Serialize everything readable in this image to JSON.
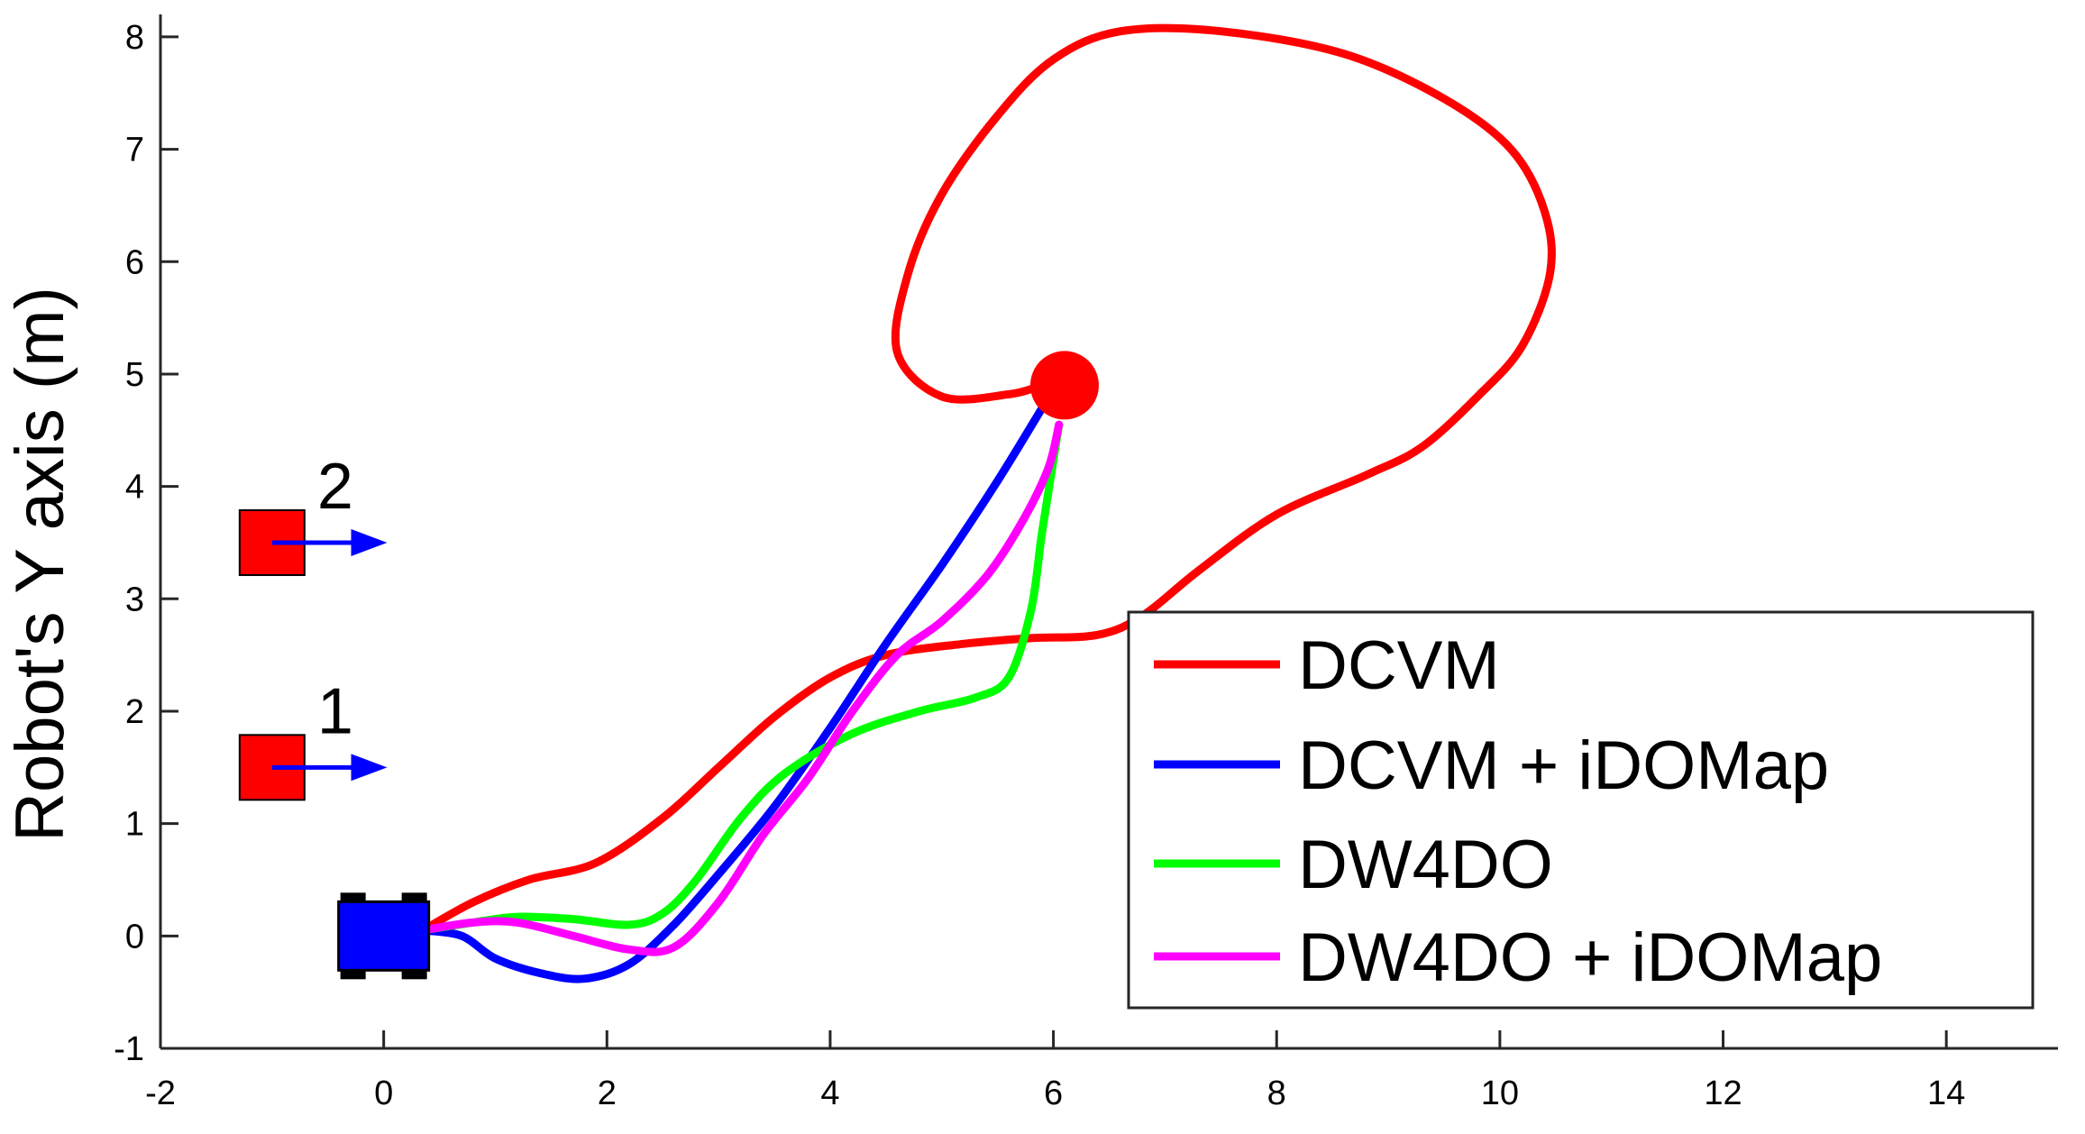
{
  "chart_data": {
    "type": "line",
    "title": "",
    "xlabel": "",
    "ylabel": "Robot's Y axis (m)",
    "xlim": [
      -2,
      15
    ],
    "ylim": [
      -1,
      8.2
    ],
    "xticks": [
      -2,
      0,
      2,
      4,
      6,
      8,
      10,
      12,
      14
    ],
    "yticks": [
      -1,
      0,
      1,
      2,
      3,
      4,
      5,
      6,
      7,
      8
    ],
    "xtick_labels": [
      "-2",
      "0",
      "2",
      "4",
      "6",
      "8",
      "10",
      "12",
      "14"
    ],
    "ytick_labels": [
      "-1",
      "0",
      "1",
      "2",
      "3",
      "4",
      "5",
      "6",
      "7",
      "8"
    ],
    "grid": false,
    "legend_position": "bottom-right",
    "series": [
      {
        "name": "DCVM",
        "color": "#ff0000",
        "points": [
          [
            0.35,
            0.05
          ],
          [
            0.8,
            0.3
          ],
          [
            1.3,
            0.5
          ],
          [
            1.9,
            0.65
          ],
          [
            2.5,
            1.05
          ],
          [
            3.0,
            1.5
          ],
          [
            3.5,
            1.95
          ],
          [
            4.0,
            2.3
          ],
          [
            4.5,
            2.5
          ],
          [
            5.2,
            2.6
          ],
          [
            5.8,
            2.65
          ],
          [
            6.4,
            2.68
          ],
          [
            6.8,
            2.85
          ],
          [
            7.3,
            3.25
          ],
          [
            8.0,
            3.75
          ],
          [
            8.8,
            4.1
          ],
          [
            9.3,
            4.35
          ],
          [
            9.8,
            4.8
          ],
          [
            10.2,
            5.25
          ],
          [
            10.45,
            5.9
          ],
          [
            10.4,
            6.45
          ],
          [
            10.1,
            7.0
          ],
          [
            9.5,
            7.45
          ],
          [
            8.6,
            7.85
          ],
          [
            7.5,
            8.05
          ],
          [
            6.6,
            8.05
          ],
          [
            6.0,
            7.8
          ],
          [
            5.5,
            7.3
          ],
          [
            5.0,
            6.6
          ],
          [
            4.7,
            5.9
          ],
          [
            4.6,
            5.2
          ],
          [
            5.0,
            4.8
          ],
          [
            5.6,
            4.82
          ],
          [
            5.9,
            4.9
          ]
        ]
      },
      {
        "name": "DCVM + iDOMap",
        "color": "#0000ff",
        "points": [
          [
            0.35,
            0.05
          ],
          [
            0.7,
            0.0
          ],
          [
            1.0,
            -0.2
          ],
          [
            1.4,
            -0.33
          ],
          [
            1.8,
            -0.38
          ],
          [
            2.2,
            -0.25
          ],
          [
            2.6,
            0.1
          ],
          [
            3.0,
            0.55
          ],
          [
            3.5,
            1.15
          ],
          [
            4.0,
            1.85
          ],
          [
            4.5,
            2.6
          ],
          [
            5.0,
            3.3
          ],
          [
            5.5,
            4.05
          ],
          [
            5.9,
            4.7
          ]
        ]
      },
      {
        "name": "DW4DO",
        "color": "#00ff00",
        "points": [
          [
            0.35,
            0.05
          ],
          [
            0.8,
            0.12
          ],
          [
            1.2,
            0.17
          ],
          [
            1.7,
            0.15
          ],
          [
            2.2,
            0.1
          ],
          [
            2.5,
            0.2
          ],
          [
            2.8,
            0.5
          ],
          [
            3.2,
            1.05
          ],
          [
            3.6,
            1.45
          ],
          [
            4.2,
            1.8
          ],
          [
            4.8,
            2.0
          ],
          [
            5.3,
            2.12
          ],
          [
            5.6,
            2.3
          ],
          [
            5.8,
            2.9
          ],
          [
            5.9,
            3.6
          ],
          [
            6.05,
            4.55
          ]
        ]
      },
      {
        "name": "DW4DO + iDOMap",
        "color": "#ff00ff",
        "points": [
          [
            0.35,
            0.05
          ],
          [
            0.8,
            0.12
          ],
          [
            1.2,
            0.12
          ],
          [
            1.7,
            0.0
          ],
          [
            2.2,
            -0.12
          ],
          [
            2.6,
            -0.1
          ],
          [
            3.0,
            0.3
          ],
          [
            3.4,
            0.9
          ],
          [
            3.8,
            1.4
          ],
          [
            4.2,
            2.0
          ],
          [
            4.6,
            2.5
          ],
          [
            5.0,
            2.8
          ],
          [
            5.4,
            3.2
          ],
          [
            5.7,
            3.65
          ],
          [
            5.95,
            4.15
          ],
          [
            6.05,
            4.55
          ]
        ]
      }
    ],
    "legend": [
      "DCVM",
      "DCVM + iDOMap",
      "DW4DO",
      "DW4DO + iDOMap"
    ],
    "obstacles": [
      {
        "label": "1",
        "x": -1.0,
        "y": 1.5,
        "velocity_arrow_to": [
          -0.05,
          1.5
        ],
        "color": "#ff0000"
      },
      {
        "label": "2",
        "x": -1.0,
        "y": 3.5,
        "velocity_arrow_to": [
          -0.05,
          3.5
        ],
        "color": "#ff0000"
      }
    ],
    "robot": {
      "x": 0.0,
      "y": 0.0,
      "color": "#0000ff"
    },
    "goal": {
      "x": 6.1,
      "y": 4.9,
      "color": "#ff0000"
    }
  }
}
